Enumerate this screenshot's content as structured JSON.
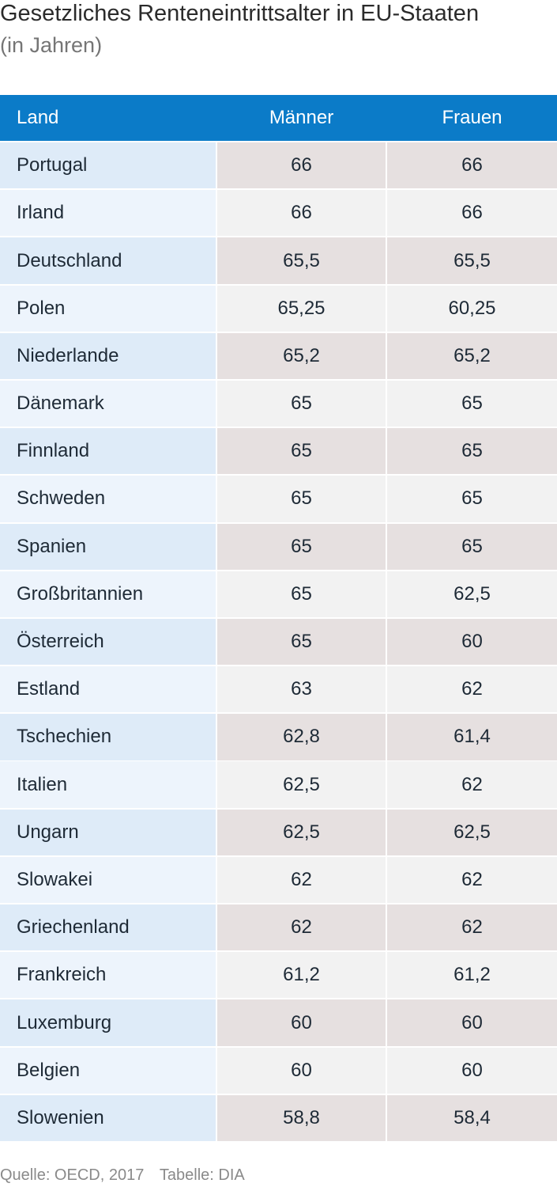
{
  "title": "Gesetzliches Renteneintrittsalter in EU-Staaten",
  "subtitle": "(in Jahren)",
  "table": {
    "columns": [
      "Land",
      "Männer",
      "Frauen"
    ],
    "rows": [
      [
        "Portugal",
        "66",
        "66"
      ],
      [
        "Irland",
        "66",
        "66"
      ],
      [
        "Deutschland",
        "65,5",
        "65,5"
      ],
      [
        "Polen",
        "65,25",
        "60,25"
      ],
      [
        "Niederlande",
        "65,2",
        "65,2"
      ],
      [
        "Dänemark",
        "65",
        "65"
      ],
      [
        "Finnland",
        "65",
        "65"
      ],
      [
        "Schweden",
        "65",
        "65"
      ],
      [
        "Spanien",
        "65",
        "65"
      ],
      [
        "Großbritannien",
        "65",
        "62,5"
      ],
      [
        "Österreich",
        "65",
        "60"
      ],
      [
        "Estland",
        "63",
        "62"
      ],
      [
        "Tschechien",
        "62,8",
        "61,4"
      ],
      [
        "Italien",
        "62,5",
        "62"
      ],
      [
        "Ungarn",
        "62,5",
        "62,5"
      ],
      [
        "Slowakei",
        "62",
        "62"
      ],
      [
        "Griechenland",
        "62",
        "62"
      ],
      [
        "Frankreich",
        "61,2",
        "61,2"
      ],
      [
        "Luxemburg",
        "60",
        "60"
      ],
      [
        "Belgien",
        "60",
        "60"
      ],
      [
        "Slowenien",
        "58,8",
        "58,4"
      ]
    ]
  },
  "source": {
    "quelle": "Quelle: OECD, 2017",
    "tabelle": "Tabelle: DIA"
  },
  "colors": {
    "header_bg": "#0b7bc8",
    "land_col_bg": "#deebf8",
    "value_col_bg": "#e6e0e0"
  }
}
